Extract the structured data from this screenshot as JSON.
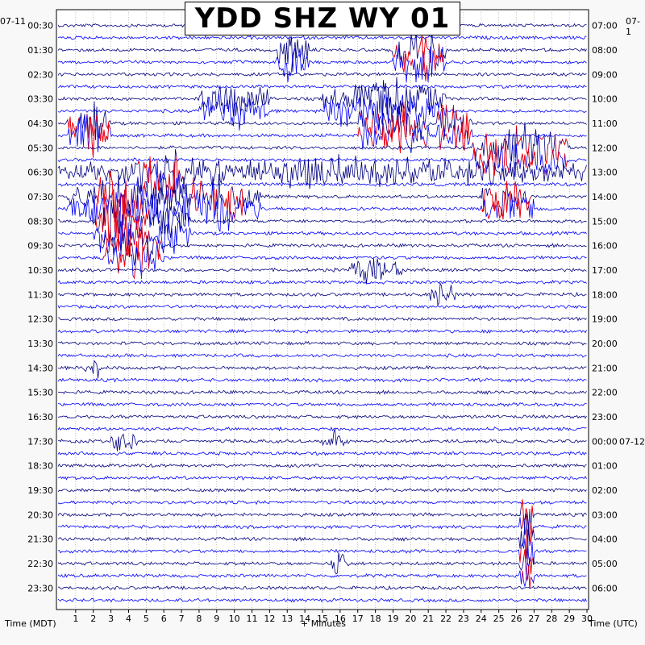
{
  "chart_data": {
    "type": "line",
    "title": "YDD SHZ WY 01",
    "left_date": "07-11",
    "right_date": "07-1",
    "right_date_change": "07-12",
    "left_axis_label": "Time (MDT)",
    "right_axis_label": "Time (UTC)",
    "x_axis_label": "+ Minutes",
    "x_ticks": [
      "1",
      "2",
      "3",
      "4",
      "5",
      "6",
      "7",
      "8",
      "9",
      "10",
      "11",
      "12",
      "13",
      "14",
      "15",
      "16",
      "17",
      "18",
      "19",
      "20",
      "21",
      "22",
      "23",
      "24",
      "25",
      "26",
      "27",
      "28",
      "29",
      "30"
    ],
    "x_range": [
      0,
      30
    ],
    "trace_interval_minutes": 30,
    "left_hour_labels": [
      "00:30",
      "01:30",
      "02:30",
      "03:30",
      "04:30",
      "05:30",
      "06:30",
      "07:30",
      "08:30",
      "09:30",
      "10:30",
      "11:30",
      "12:30",
      "13:30",
      "14:30",
      "15:30",
      "16:30",
      "17:30",
      "18:30",
      "19:30",
      "20:30",
      "21:30",
      "22:30",
      "23:30"
    ],
    "right_hour_labels": [
      "07:00",
      "08:00",
      "09:00",
      "10:00",
      "11:00",
      "12:00",
      "13:00",
      "14:00",
      "15:00",
      "16:00",
      "17:00",
      "18:00",
      "19:00",
      "20:00",
      "21:00",
      "22:00",
      "23:00",
      "00:00",
      "01:00",
      "02:00",
      "03:00",
      "04:00",
      "05:00",
      "06:00"
    ],
    "trace_colors": [
      "#000080",
      "#0000ff"
    ],
    "clip_color": "#ff0000",
    "events": [
      {
        "row": 1,
        "start_min": 12.4,
        "end_min": 14.2,
        "amp": 1.6
      },
      {
        "row": 1,
        "start_min": 19.0,
        "end_min": 22.0,
        "amp": 1.8,
        "clip": true
      },
      {
        "row": 3,
        "start_min": 8.0,
        "end_min": 12.0,
        "amp": 1.5
      },
      {
        "row": 3,
        "start_min": 15.0,
        "end_min": 22.0,
        "amp": 1.6
      },
      {
        "row": 4,
        "start_min": 0.5,
        "end_min": 3.0,
        "amp": 1.5,
        "clip": true
      },
      {
        "row": 4,
        "start_min": 17.0,
        "end_min": 21.0,
        "amp": 1.7,
        "clip": true
      },
      {
        "row": 4,
        "start_min": 21.5,
        "end_min": 23.5,
        "amp": 1.8,
        "clip": true
      },
      {
        "row": 5,
        "start_min": 23.5,
        "end_min": 29.0,
        "amp": 1.9,
        "clip": true
      },
      {
        "row": 6,
        "start_min": 4.5,
        "end_min": 7.2,
        "amp": 2.0,
        "clip": true
      },
      {
        "row": 6,
        "start_min": 0.0,
        "end_min": 30.0,
        "amp": 1.2
      },
      {
        "row": 7,
        "start_min": 0.5,
        "end_min": 11.5,
        "amp": 1.8
      },
      {
        "row": 7,
        "start_min": 2.0,
        "end_min": 5.0,
        "amp": 2.2,
        "clip": true
      },
      {
        "row": 7,
        "start_min": 7.5,
        "end_min": 10.5,
        "amp": 1.9,
        "clip": true
      },
      {
        "row": 7,
        "start_min": 24.0,
        "end_min": 27.0,
        "amp": 1.6,
        "clip": true
      },
      {
        "row": 8,
        "start_min": 2.0,
        "end_min": 5.2,
        "amp": 2.0,
        "clip": true
      },
      {
        "row": 8,
        "start_min": 5.0,
        "end_min": 7.5,
        "amp": 1.6
      },
      {
        "row": 9,
        "start_min": 2.5,
        "end_min": 6.0,
        "amp": 1.6,
        "clip": true
      },
      {
        "row": 10,
        "start_min": 16.5,
        "end_min": 19.5,
        "amp": 1.1
      },
      {
        "row": 11,
        "start_min": 21.0,
        "end_min": 22.5,
        "amp": 1.0
      },
      {
        "row": 14,
        "start_min": 1.5,
        "end_min": 2.5,
        "amp": 0.9
      },
      {
        "row": 17,
        "start_min": 3.0,
        "end_min": 4.5,
        "amp": 1.0
      },
      {
        "row": 17,
        "start_min": 15.0,
        "end_min": 16.5,
        "amp": 0.9
      },
      {
        "row": 20,
        "start_min": 26.2,
        "end_min": 27.0,
        "amp": 2.0,
        "clip": true
      },
      {
        "row": 21,
        "start_min": 26.2,
        "end_min": 27.0,
        "amp": 2.0,
        "clip": true
      },
      {
        "row": 22,
        "start_min": 26.2,
        "end_min": 27.0,
        "amp": 1.8,
        "clip": true
      },
      {
        "row": 22,
        "start_min": 15.5,
        "end_min": 16.5,
        "amp": 1.2
      }
    ]
  }
}
